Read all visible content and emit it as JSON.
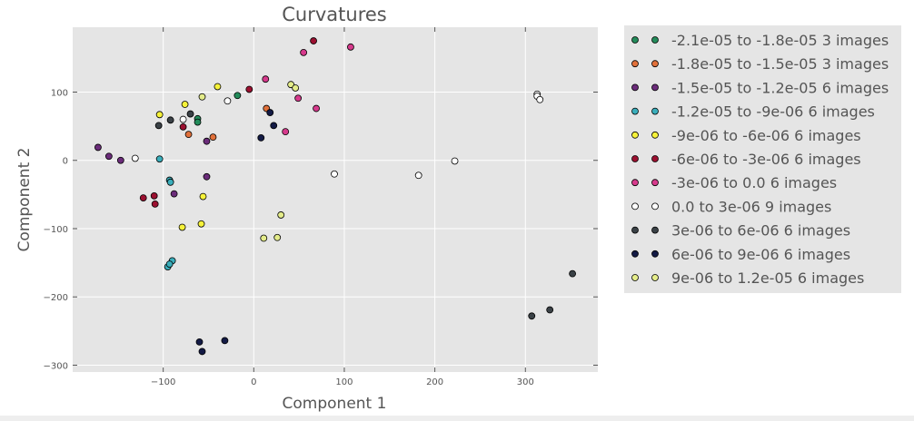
{
  "chart_data": {
    "type": "scatter",
    "title": "Curvatures",
    "xlabel": "Component 1",
    "ylabel": "Component 2",
    "xlim": [
      -200,
      380
    ],
    "ylim": [
      -310,
      195
    ],
    "xticks": [
      -100,
      0,
      100,
      200,
      300
    ],
    "yticks": [
      -300,
      -200,
      -100,
      0,
      100
    ],
    "xtick_labels": [
      "−100",
      "0",
      "100",
      "200",
      "300"
    ],
    "ytick_labels": [
      "−300",
      "−200",
      "−100",
      "0",
      "100"
    ],
    "grid": true,
    "legend_position": "outside-right",
    "series": [
      {
        "name": "-2.1e-05 to -1.8e-05 3 images",
        "color": "#238b5a",
        "points": [
          [
            -18,
            95
          ],
          [
            -62,
            61
          ],
          [
            -62,
            56
          ]
        ]
      },
      {
        "name": "-1.8e-05 to -1.5e-05 3 images",
        "color": "#e0703a",
        "points": [
          [
            -72,
            38
          ],
          [
            -45,
            34
          ],
          [
            14,
            76
          ]
        ]
      },
      {
        "name": "-1.5e-05 to -1.2e-05 6 images",
        "color": "#6b2c7a",
        "points": [
          [
            -172,
            19
          ],
          [
            -160,
            6
          ],
          [
            -147,
            0
          ],
          [
            -88,
            -49
          ],
          [
            -52,
            28
          ],
          [
            -52,
            -24
          ]
        ]
      },
      {
        "name": "-1.2e-05 to -9e-06 6 images",
        "color": "#3aaebb",
        "points": [
          [
            -104,
            2
          ],
          [
            -93,
            -29
          ],
          [
            -92,
            -32
          ],
          [
            -95,
            -156
          ],
          [
            -90,
            -147
          ],
          [
            -93,
            -152
          ]
        ]
      },
      {
        "name": "-9e-06 to -6e-06 6 images",
        "color": "#f6f23a",
        "points": [
          [
            -104,
            67
          ],
          [
            -76,
            82
          ],
          [
            -40,
            108
          ],
          [
            -56,
            -53
          ],
          [
            -58,
            -93
          ],
          [
            -79,
            -98
          ]
        ]
      },
      {
        "name": "-6e-06 to -3e-06 6 images",
        "color": "#9b1030",
        "points": [
          [
            -122,
            -55
          ],
          [
            -110,
            -52
          ],
          [
            -109,
            -64
          ],
          [
            -78,
            49
          ],
          [
            -5,
            104
          ],
          [
            66,
            175
          ]
        ]
      },
      {
        "name": "-3e-06 to 0.0 6 images",
        "color": "#d63a8c",
        "points": [
          [
            13,
            119
          ],
          [
            55,
            158
          ],
          [
            107,
            166
          ],
          [
            49,
            91
          ],
          [
            69,
            76
          ],
          [
            35,
            42
          ]
        ]
      },
      {
        "name": "0.0 to 3e-06 9 images",
        "color": "#ffffff",
        "points": [
          [
            -131,
            3
          ],
          [
            -78,
            60
          ],
          [
            -29,
            87
          ],
          [
            89,
            -20
          ],
          [
            182,
            -22
          ],
          [
            222,
            -1
          ],
          [
            313,
            97
          ],
          [
            313,
            94
          ],
          [
            316,
            89
          ]
        ]
      },
      {
        "name": "3e-06 to 6e-06 6 images",
        "color": "#3a4146",
        "points": [
          [
            -105,
            51
          ],
          [
            -92,
            59
          ],
          [
            -70,
            68
          ],
          [
            307,
            -228
          ],
          [
            327,
            -219
          ],
          [
            352,
            -166
          ]
        ]
      },
      {
        "name": "6e-06 to 9e-06 6 images",
        "color": "#131a45",
        "points": [
          [
            8,
            33
          ],
          [
            18,
            70
          ],
          [
            22,
            51
          ],
          [
            -60,
            -266
          ],
          [
            -57,
            -280
          ],
          [
            -32,
            -264
          ]
        ]
      },
      {
        "name": "9e-06 to 1.2e-05 6 images",
        "color": "#e4ec8a",
        "points": [
          [
            -57,
            93
          ],
          [
            41,
            111
          ],
          [
            46,
            106
          ],
          [
            30,
            -80
          ],
          [
            26,
            -113
          ],
          [
            11,
            -114
          ]
        ]
      }
    ]
  }
}
